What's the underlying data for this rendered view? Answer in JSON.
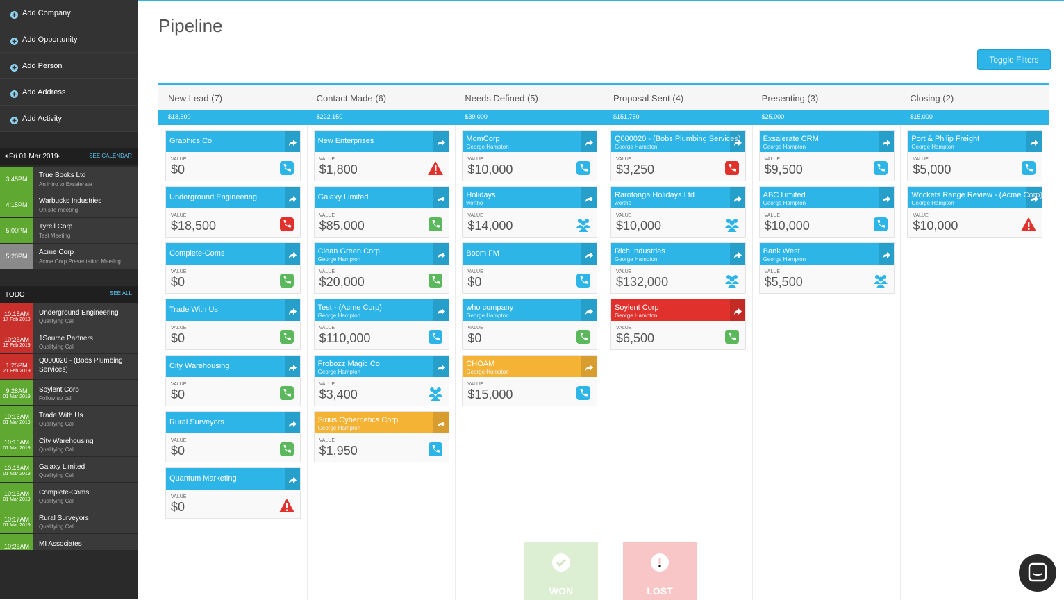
{
  "sidebar": {
    "menu": [
      "Add Company",
      "Add Opportunity",
      "Add Person",
      "Add Address",
      "Add Activity"
    ],
    "calendar": {
      "date": "Fri 01 Mar 2019",
      "link": "SEE CALENDAR",
      "events": [
        {
          "time": "3:45PM",
          "title": "True Books Ltd",
          "sub": "An intro to Exsalerate",
          "color": "#5fa831"
        },
        {
          "time": "4:15PM",
          "title": "Warbucks Industries",
          "sub": "On site meeting",
          "color": "#5fa831"
        },
        {
          "time": "5:00PM",
          "title": "Tyrell Corp",
          "sub": "Test Meeting",
          "color": "#5fa831"
        },
        {
          "time": "5:20PM",
          "title": "Acme Corp",
          "sub": "Acme Corp Presentation Meeting",
          "color": "#8a8a8a"
        }
      ]
    },
    "todo": {
      "title": "TODO",
      "link": "SEE ALL",
      "items": [
        {
          "time": "10:15AM",
          "date": "17 Feb 2019",
          "title": "Underground Engineering",
          "sub": "Qualifying Call",
          "color": "#c9302c"
        },
        {
          "time": "10:25AM",
          "date": "18 Feb 2019",
          "title": "1Source Partners",
          "sub": "Qualifying Call",
          "color": "#c9302c"
        },
        {
          "time": "1:25PM",
          "date": "21 Feb 2019",
          "title": "Q000020 - (Bobs Plumbing Services)",
          "color": "#c9302c"
        },
        {
          "time": "9:28AM",
          "date": "01 Mar 2019",
          "title": "Soylent Corp",
          "sub": "Follow up call",
          "color": "#5fa831"
        },
        {
          "time": "10:16AM",
          "date": "01 Mar 2019",
          "title": "Trade With Us",
          "sub": "Qualifying Call",
          "color": "#5fa831"
        },
        {
          "time": "10:16AM",
          "date": "01 Mar 2019",
          "title": "City Warehousing",
          "sub": "Qualifying Call",
          "color": "#5fa831"
        },
        {
          "time": "10:16AM",
          "date": "01 Mar 2019",
          "title": "Galaxy Limited",
          "sub": "Qualifying Call",
          "color": "#5fa831"
        },
        {
          "time": "10:16AM",
          "date": "01 Mar 2019",
          "title": "Complete-Coms",
          "sub": "Qualifying Call",
          "color": "#5fa831"
        },
        {
          "time": "10:17AM",
          "date": "01 Mar 2019",
          "title": "Rural Surveyors",
          "sub": "Qualifying Call",
          "color": "#5fa831"
        },
        {
          "time": "10:23AM",
          "title": "MI Associates",
          "color": "#5fa831"
        }
      ]
    }
  },
  "header": {
    "title": "Pipeline",
    "button": "Toggle Filters"
  },
  "board": {
    "value_caption": "VALUE",
    "won": "WON",
    "lost": "LOST",
    "columns": [
      {
        "name": "New Lead (7)",
        "total": "$18,500",
        "cards": [
          {
            "title": "Graphics Co",
            "value": "$0",
            "icon": "call-blue"
          },
          {
            "title": "Underground Engineering",
            "value": "$18,500",
            "icon": "call-red"
          },
          {
            "title": "Complete-Coms",
            "value": "$0",
            "icon": "call-green"
          },
          {
            "title": "Trade With Us",
            "value": "$0",
            "icon": "call-green"
          },
          {
            "title": "City Warehousing",
            "value": "$0",
            "icon": "call-green"
          },
          {
            "title": "Rural Surveyors",
            "value": "$0",
            "icon": "call-green"
          },
          {
            "title": "Quantum Marketing",
            "value": "$0",
            "icon": "alert"
          }
        ]
      },
      {
        "name": "Contact Made (6)",
        "total": "$222,150",
        "cards": [
          {
            "title": "New Enterprises",
            "value": "$1,800",
            "icon": "alert"
          },
          {
            "title": "Galaxy Limited",
            "value": "$85,000",
            "icon": "call-green"
          },
          {
            "title": "Clean Green Corp",
            "sub": "George Hampton",
            "value": "$20,000",
            "icon": "call-green"
          },
          {
            "title": "Test - (Acme Corp)",
            "sub": "George Hampton",
            "value": "$110,000",
            "icon": "call-blue"
          },
          {
            "title": "Frobozz Magic Co",
            "sub": "George Hampton",
            "value": "$3,400",
            "icon": "meeting"
          },
          {
            "title": "Sirius Cybernetics Corp",
            "sub": "George Hampton",
            "value": "$1,950",
            "icon": "call-blue",
            "color": "#f5b335"
          }
        ]
      },
      {
        "name": "Needs Defined (5)",
        "total": "$39,000",
        "cards": [
          {
            "title": "MomCorp",
            "sub": "George Hampton",
            "value": "$10,000",
            "icon": "call-blue"
          },
          {
            "title": "Holidays",
            "sub": "wortho",
            "value": "$14,000",
            "icon": "meeting"
          },
          {
            "title": "Boom FM",
            "value": "$0",
            "icon": "call-blue"
          },
          {
            "title": "who company",
            "sub": "George Hampton",
            "value": "$0",
            "icon": "call-green"
          },
          {
            "title": "CHOAM",
            "sub": "George Hampton",
            "value": "$15,000",
            "icon": "call-blue",
            "color": "#f5b335"
          }
        ]
      },
      {
        "name": "Proposal Sent (4)",
        "total": "$151,750",
        "cards": [
          {
            "title": "Q000020 - (Bobs Plumbing Services)",
            "sub": "George Hampton",
            "value": "$3,250",
            "icon": "call-red"
          },
          {
            "title": "Rarotonga Holidays Ltd",
            "sub": "wortho",
            "value": "$10,000",
            "icon": "meeting"
          },
          {
            "title": "Rich Industries",
            "sub": "George Hampton",
            "value": "$132,000",
            "icon": "meeting"
          },
          {
            "title": "Soylent Corp",
            "sub": "George Hampton",
            "value": "$6,500",
            "icon": "call-green",
            "color": "#e0312c"
          }
        ]
      },
      {
        "name": "Presenting (3)",
        "total": "$25,000",
        "cards": [
          {
            "title": "Exsalerate CRM",
            "sub": "George Hampton",
            "value": "$9,500",
            "icon": "call-blue"
          },
          {
            "title": "ABC Limited",
            "sub": "George Hampton",
            "value": "$10,000",
            "icon": "call-blue"
          },
          {
            "title": "Bank West",
            "sub": "George Hampton",
            "value": "$5,500",
            "icon": "meeting"
          }
        ]
      },
      {
        "name": "Closing (2)",
        "total": "$15,000",
        "cards": [
          {
            "title": "Port & Philip Freight",
            "sub": "George Hampton",
            "value": "$5,000",
            "icon": "call-blue"
          },
          {
            "title": "Wockets Range Review - (Acme Corp)",
            "sub": "George Hampton",
            "value": "$10,000",
            "icon": "alert"
          }
        ]
      }
    ]
  }
}
